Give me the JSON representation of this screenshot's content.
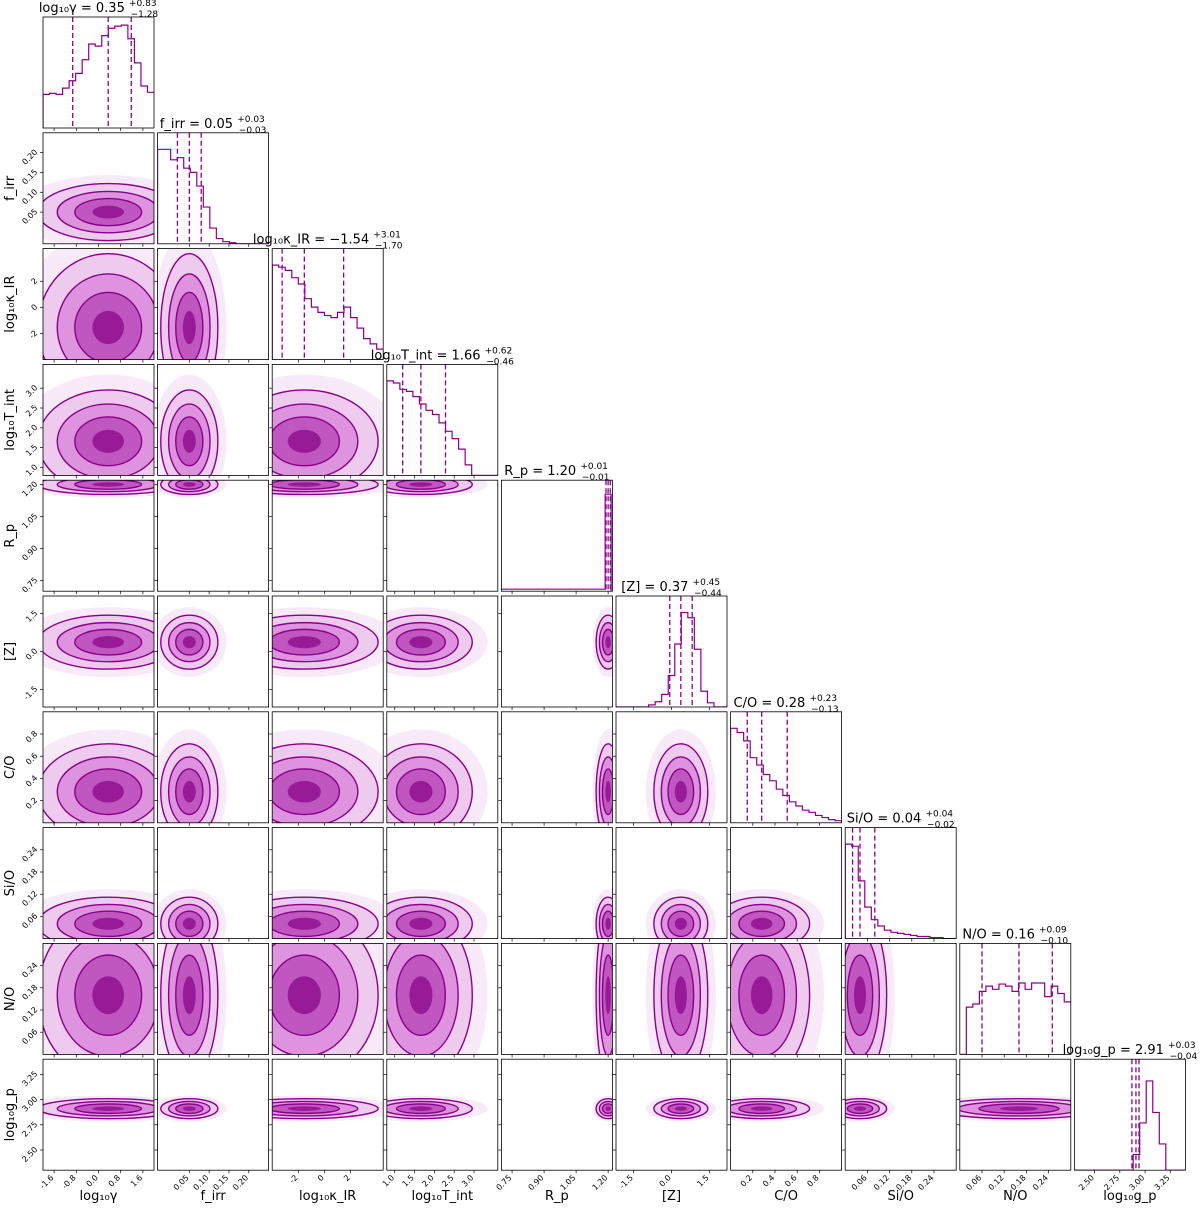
{
  "chart_data": {
    "type": "corner",
    "color": "#8b008b",
    "parameters": [
      {
        "id": "log10_gamma",
        "label": "log₁₀γ",
        "range": [
          -2.0,
          2.0
        ],
        "ticks": [
          "-1.6",
          "-0.8",
          "0.0",
          "0.8",
          "1.6"
        ],
        "median": 0.35,
        "plus": "+0.83",
        "minus": "−1.28",
        "title_prefix": "log₁₀γ = ",
        "title_value": "0.35",
        "hist": [
          0.32,
          0.33,
          0.32,
          0.38,
          0.45,
          0.52,
          0.65,
          0.8,
          0.78,
          0.88,
          0.95,
          0.97,
          0.98,
          0.85,
          0.62,
          0.4,
          0.34
        ],
        "q": [
          -0.93,
          0.35,
          1.18
        ]
      },
      {
        "id": "f_irr",
        "label": "f_irr",
        "range": [
          -0.03,
          0.25
        ],
        "ticks": [
          "0.05",
          "0.10",
          "0.15",
          "0.20"
        ],
        "median": 0.05,
        "plus": "+0.03",
        "minus": "−0.03",
        "title_prefix": "f_irr = ",
        "title_value": "0.05",
        "hist": [
          0.9,
          0.9,
          0.8,
          0.82,
          0.72,
          0.68,
          0.55,
          0.35,
          0.15,
          0.05,
          0.02,
          0.01,
          0.0,
          0.0,
          0.0,
          0.0,
          0.0
        ],
        "q": [
          0.02,
          0.05,
          0.08
        ]
      },
      {
        "id": "log10_kappa_IR",
        "label": "log₁₀κ_IR",
        "range": [
          -4.0,
          4.5
        ],
        "ticks": [
          "-2",
          "0",
          "2"
        ],
        "median": -1.54,
        "plus": "+3.01",
        "minus": "−1.70",
        "title_prefix": "log₁₀κ_IR = ",
        "title_value": "−1.54",
        "hist": [
          0.9,
          0.88,
          0.85,
          0.78,
          0.72,
          0.58,
          0.5,
          0.45,
          0.42,
          0.4,
          0.45,
          0.5,
          0.4,
          0.3,
          0.2,
          0.15,
          0.1
        ],
        "q": [
          -3.24,
          -1.54,
          1.47
        ]
      },
      {
        "id": "log10_T_int",
        "label": "log₁₀T_int",
        "range": [
          0.8,
          3.6
        ],
        "ticks": [
          "1.0",
          "1.5",
          "2.0",
          "2.5",
          "3.0"
        ],
        "median": 1.66,
        "plus": "+0.62",
        "minus": "−0.46",
        "title_prefix": "log₁₀T_int = ",
        "title_value": "1.66",
        "hist": [
          0.9,
          0.88,
          0.82,
          0.8,
          0.75,
          0.68,
          0.62,
          0.58,
          0.5,
          0.42,
          0.35,
          0.25,
          0.1,
          0.0,
          0.0,
          0.0,
          0.0
        ],
        "q": [
          1.2,
          1.66,
          2.28
        ]
      },
      {
        "id": "R_p",
        "label": "R_p",
        "range": [
          0.7,
          1.22
        ],
        "ticks": [
          "0.75",
          "0.90",
          "1.05",
          "1.20"
        ],
        "median": 1.2,
        "plus": "+0.01",
        "minus": "−0.01",
        "title_prefix": "R_p = ",
        "title_value": "1.20",
        "hist": [
          0.9
        ],
        "q": [
          1.19,
          1.2,
          1.21
        ]
      },
      {
        "id": "Z",
        "label": "[Z]",
        "range": [
          -2.2,
          2.2
        ],
        "ticks": [
          "-1.5",
          "0.0",
          "1.5"
        ],
        "median": 0.37,
        "plus": "+0.45",
        "minus": "−0.44",
        "title_prefix": "[Z] = ",
        "title_value": "0.37",
        "hist": [
          0.0,
          0.0,
          0.0,
          0.0,
          0.0,
          0.02,
          0.05,
          0.12,
          0.3,
          0.6,
          0.9,
          0.85,
          0.55,
          0.15,
          0.04,
          0.0,
          0.0
        ],
        "q": [
          -0.07,
          0.37,
          0.82
        ]
      },
      {
        "id": "C_O",
        "label": "C/O",
        "range": [
          0.0,
          1.0
        ],
        "ticks": [
          "0.2",
          "0.4",
          "0.6",
          "0.8"
        ],
        "median": 0.28,
        "plus": "+0.23",
        "minus": "−0.13",
        "title_prefix": "C/O = ",
        "title_value": "0.28",
        "hist": [
          0.9,
          0.86,
          0.78,
          0.62,
          0.55,
          0.46,
          0.4,
          0.32,
          0.26,
          0.2,
          0.16,
          0.12,
          0.1,
          0.07,
          0.05,
          0.03,
          0.02
        ],
        "q": [
          0.15,
          0.28,
          0.51
        ]
      },
      {
        "id": "Si_O",
        "label": "Si/O",
        "range": [
          0.0,
          0.3
        ],
        "ticks": [
          "0.06",
          "0.12",
          "0.18",
          "0.24"
        ],
        "median": 0.04,
        "plus": "+0.04",
        "minus": "−0.02",
        "title_prefix": "Si/O = ",
        "title_value": "0.04",
        "hist": [
          0.9,
          0.88,
          0.55,
          0.3,
          0.18,
          0.12,
          0.08,
          0.06,
          0.05,
          0.04,
          0.03,
          0.02,
          0.02,
          0.01,
          0.01,
          0.0,
          0.0
        ],
        "q": [
          0.02,
          0.04,
          0.08
        ]
      },
      {
        "id": "N_O",
        "label": "N/O",
        "range": [
          0.0,
          0.3
        ],
        "ticks": [
          "0.06",
          "0.12",
          "0.18",
          "0.24"
        ],
        "median": 0.16,
        "plus": "+0.09",
        "minus": "−0.10",
        "title_prefix": "N/O = ",
        "title_value": "0.16",
        "hist": [
          0.0,
          0.45,
          0.48,
          0.6,
          0.65,
          0.62,
          0.67,
          0.65,
          0.6,
          0.68,
          0.62,
          0.68,
          0.68,
          0.55,
          0.65,
          0.58,
          0.5
        ],
        "q": [
          0.06,
          0.16,
          0.25
        ]
      },
      {
        "id": "log10_g_p",
        "label": "log₁₀g_p",
        "range": [
          2.3,
          3.4
        ],
        "ticks": [
          "2.50",
          "2.75",
          "3.00",
          "3.25"
        ],
        "median": 2.91,
        "plus": "+0.03",
        "minus": "−0.04",
        "title_prefix": "log₁₀g_p = ",
        "title_value": "2.91",
        "hist": [
          0.0,
          0.0,
          0.0,
          0.0,
          0.0,
          0.0,
          0.0,
          0.0,
          0.0,
          0.15,
          0.45,
          0.85,
          0.55,
          0.25,
          0.0,
          0.0,
          0.0
        ],
        "q": [
          2.87,
          2.91,
          2.94
        ]
      }
    ]
  }
}
